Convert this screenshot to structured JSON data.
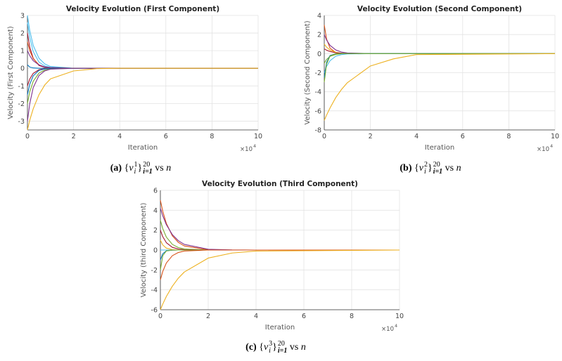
{
  "chart_data": [
    {
      "type": "line",
      "title": "Velocity Evolution (First Component)",
      "xlabel": "Iteration",
      "ylabel": "Velocity (First Component)",
      "x_exponent_label": "×10",
      "x_exponent": "4",
      "xlim": [
        0,
        100000
      ],
      "ylim": [
        -3.5,
        3
      ],
      "xticks": [
        0,
        20000,
        40000,
        60000,
        80000,
        100000
      ],
      "xtick_labels": [
        "0",
        "2",
        "4",
        "6",
        "8",
        "10"
      ],
      "yticks": [
        -3,
        -2,
        -1,
        0,
        1,
        2,
        3
      ],
      "ytick_labels": [
        "-3",
        "-2",
        "-1",
        "0",
        "1",
        "2",
        "3"
      ],
      "grid": true,
      "x": [
        0,
        1000,
        2500,
        5000,
        7500,
        10000,
        20000,
        30000,
        40000,
        100000
      ],
      "series": [
        {
          "color": "#4DBEEE",
          "values": [
            3,
            2.15,
            1.3,
            0.57,
            0.25,
            0.1,
            0,
            0,
            0,
            0
          ]
        },
        {
          "color": "#4DBEEE",
          "values": [
            2.6,
            1.74,
            0.95,
            0.35,
            0.13,
            0.05,
            0,
            0,
            0,
            0
          ]
        },
        {
          "color": "#A2142F",
          "values": [
            2,
            1.21,
            0.57,
            0.16,
            0.05,
            0.01,
            0,
            0,
            0,
            0
          ]
        },
        {
          "color": "#D95319",
          "values": [
            1.5,
            1.0,
            0.55,
            0.2,
            0.07,
            0.03,
            0,
            0,
            0,
            0
          ]
        },
        {
          "color": "#7E2F8E",
          "values": [
            1,
            0.72,
            0.43,
            0.19,
            0.08,
            0.04,
            0,
            0,
            0,
            0
          ]
        },
        {
          "color": "#0072BD",
          "values": [
            0.2,
            0.07,
            0.02,
            0,
            0,
            0,
            0,
            0,
            0,
            0
          ]
        },
        {
          "color": "#A2142F",
          "values": [
            -1,
            -0.61,
            -0.29,
            -0.08,
            -0.02,
            0,
            0,
            0,
            0,
            0
          ]
        },
        {
          "color": "#0072BD",
          "values": [
            -1.5,
            -0.91,
            -0.43,
            -0.12,
            -0.04,
            -0.01,
            0,
            0,
            0,
            0
          ]
        },
        {
          "color": "#77AC30",
          "values": [
            -2,
            -1.34,
            -0.74,
            -0.27,
            -0.1,
            -0.04,
            0,
            0,
            0,
            0
          ]
        },
        {
          "color": "#7E2F8E",
          "values": [
            -3,
            -2.01,
            -1.1,
            -0.41,
            -0.15,
            -0.05,
            0,
            0,
            0,
            0
          ]
        },
        {
          "color": "#EDB120",
          "values": [
            -3.5,
            -2.95,
            -2.3,
            -1.5,
            -0.95,
            -0.6,
            -0.15,
            -0.02,
            0,
            0
          ]
        }
      ]
    },
    {
      "type": "line",
      "title": "Velocity Evolution (Second Component)",
      "xlabel": "Iteration",
      "ylabel": "Velocity (Second Component)",
      "x_exponent_label": "×10",
      "x_exponent": "4",
      "xlim": [
        0,
        100000
      ],
      "ylim": [
        -8,
        4
      ],
      "xticks": [
        0,
        20000,
        40000,
        60000,
        80000,
        100000
      ],
      "xtick_labels": [
        "0",
        "2",
        "4",
        "6",
        "8",
        "10"
      ],
      "yticks": [
        -8,
        -6,
        -4,
        -2,
        0,
        2,
        4
      ],
      "ytick_labels": [
        "-8",
        "-6",
        "-4",
        "-2",
        "0",
        "2",
        "4"
      ],
      "grid": true,
      "x": [
        0,
        1000,
        2500,
        5000,
        7500,
        10000,
        20000,
        30000,
        40000,
        100000
      ],
      "series": [
        {
          "color": "#D95319",
          "values": [
            3,
            1.54,
            0.57,
            0.11,
            0.02,
            0,
            0,
            0,
            0,
            0
          ]
        },
        {
          "color": "#7E2F8E",
          "values": [
            2,
            1.43,
            0.87,
            0.38,
            0.16,
            0.07,
            0,
            0,
            0,
            0
          ]
        },
        {
          "color": "#EDB120",
          "values": [
            1,
            0.67,
            0.37,
            0.14,
            0.05,
            0.02,
            0,
            0,
            0,
            0
          ]
        },
        {
          "color": "#A2142F",
          "values": [
            0.5,
            0.36,
            0.22,
            0.09,
            0.04,
            0.02,
            0,
            0,
            0,
            0
          ]
        },
        {
          "color": "#77AC30",
          "values": [
            -1,
            -0.61,
            -0.29,
            -0.08,
            -0.02,
            0,
            0,
            0,
            0,
            0
          ]
        },
        {
          "color": "#4DBEEE",
          "values": [
            -2,
            -1.34,
            -0.74,
            -0.27,
            -0.1,
            -0.04,
            0,
            0,
            0,
            0
          ]
        },
        {
          "color": "#0072BD",
          "values": [
            -2.5,
            -0.92,
            -0.2,
            -0.02,
            0,
            0,
            0,
            0,
            0,
            0
          ]
        },
        {
          "color": "#77AC30",
          "values": [
            -3,
            -1.1,
            -0.25,
            -0.02,
            0,
            0,
            0,
            0,
            0,
            0
          ]
        },
        {
          "color": "#EDB120",
          "values": [
            -7,
            -6.45,
            -5.7,
            -4.6,
            -3.75,
            -3.05,
            -1.3,
            -0.55,
            -0.1,
            0
          ]
        }
      ]
    },
    {
      "type": "line",
      "title": "Velocity Evolution (Third Component)",
      "xlabel": "Iteration",
      "ylabel": "Velocity (third Component)",
      "x_exponent_label": "×10",
      "x_exponent": "4",
      "xlim": [
        0,
        100000
      ],
      "ylim": [
        -6,
        6
      ],
      "xticks": [
        0,
        20000,
        40000,
        60000,
        80000,
        100000
      ],
      "xtick_labels": [
        "0",
        "2",
        "4",
        "6",
        "8",
        "10"
      ],
      "yticks": [
        -6,
        -4,
        -2,
        0,
        2,
        4,
        6
      ],
      "ytick_labels": [
        "-6",
        "-4",
        "-2",
        "0",
        "2",
        "4",
        "6"
      ],
      "grid": true,
      "x": [
        0,
        1000,
        2500,
        5000,
        7500,
        10000,
        20000,
        30000,
        40000,
        100000
      ],
      "series": [
        {
          "color": "#D95319",
          "values": [
            5,
            3.89,
            2.68,
            1.43,
            0.77,
            0.41,
            0.03,
            0,
            0,
            0
          ]
        },
        {
          "color": "#7E2F8E",
          "values": [
            4.2,
            3.44,
            2.55,
            1.55,
            0.94,
            0.57,
            0.08,
            0.01,
            0,
            0
          ]
        },
        {
          "color": "#77AC30",
          "values": [
            3,
            2.15,
            1.3,
            0.57,
            0.25,
            0.1,
            0,
            0,
            0,
            0
          ]
        },
        {
          "color": "#A2142F",
          "values": [
            2,
            1.34,
            0.74,
            0.27,
            0.1,
            0.04,
            0,
            0,
            0,
            0
          ]
        },
        {
          "color": "#EDB120",
          "values": [
            1,
            0.51,
            0.19,
            0.04,
            0,
            0,
            0,
            0,
            0,
            0
          ]
        },
        {
          "color": "#4DBEEE",
          "values": [
            0,
            0,
            0,
            0,
            0,
            0,
            0,
            0,
            0,
            0
          ]
        },
        {
          "color": "#0072BD",
          "values": [
            -1,
            -0.37,
            -0.08,
            -0.01,
            0,
            0,
            0,
            0,
            0,
            0
          ]
        },
        {
          "color": "#77AC30",
          "values": [
            -2,
            -0.57,
            -0.09,
            0,
            0,
            0,
            0,
            0,
            0,
            0
          ]
        },
        {
          "color": "#D95319",
          "values": [
            -3,
            -2.15,
            -1.3,
            -0.57,
            -0.25,
            -0.1,
            0,
            0,
            0,
            0
          ]
        },
        {
          "color": "#EDB120",
          "values": [
            -6,
            -5.43,
            -4.67,
            -3.64,
            -2.83,
            -2.21,
            -0.81,
            -0.3,
            -0.1,
            0
          ]
        }
      ]
    }
  ],
  "captions": [
    {
      "label": "(a)",
      "var": "v",
      "sup": "1",
      "sub": "i",
      "set_sup": "20",
      "set_sub": "i=1",
      "vs": "vs",
      "n": "n"
    },
    {
      "label": "(b)",
      "var": "v",
      "sup": "2",
      "sub": "i",
      "set_sup": "20",
      "set_sub": "i=1",
      "vs": "vs",
      "n": "n"
    },
    {
      "label": "(c)",
      "var": "v",
      "sup": "3",
      "sub": "i",
      "set_sup": "20",
      "set_sub": "i=1",
      "vs": "vs",
      "n": "n"
    }
  ]
}
